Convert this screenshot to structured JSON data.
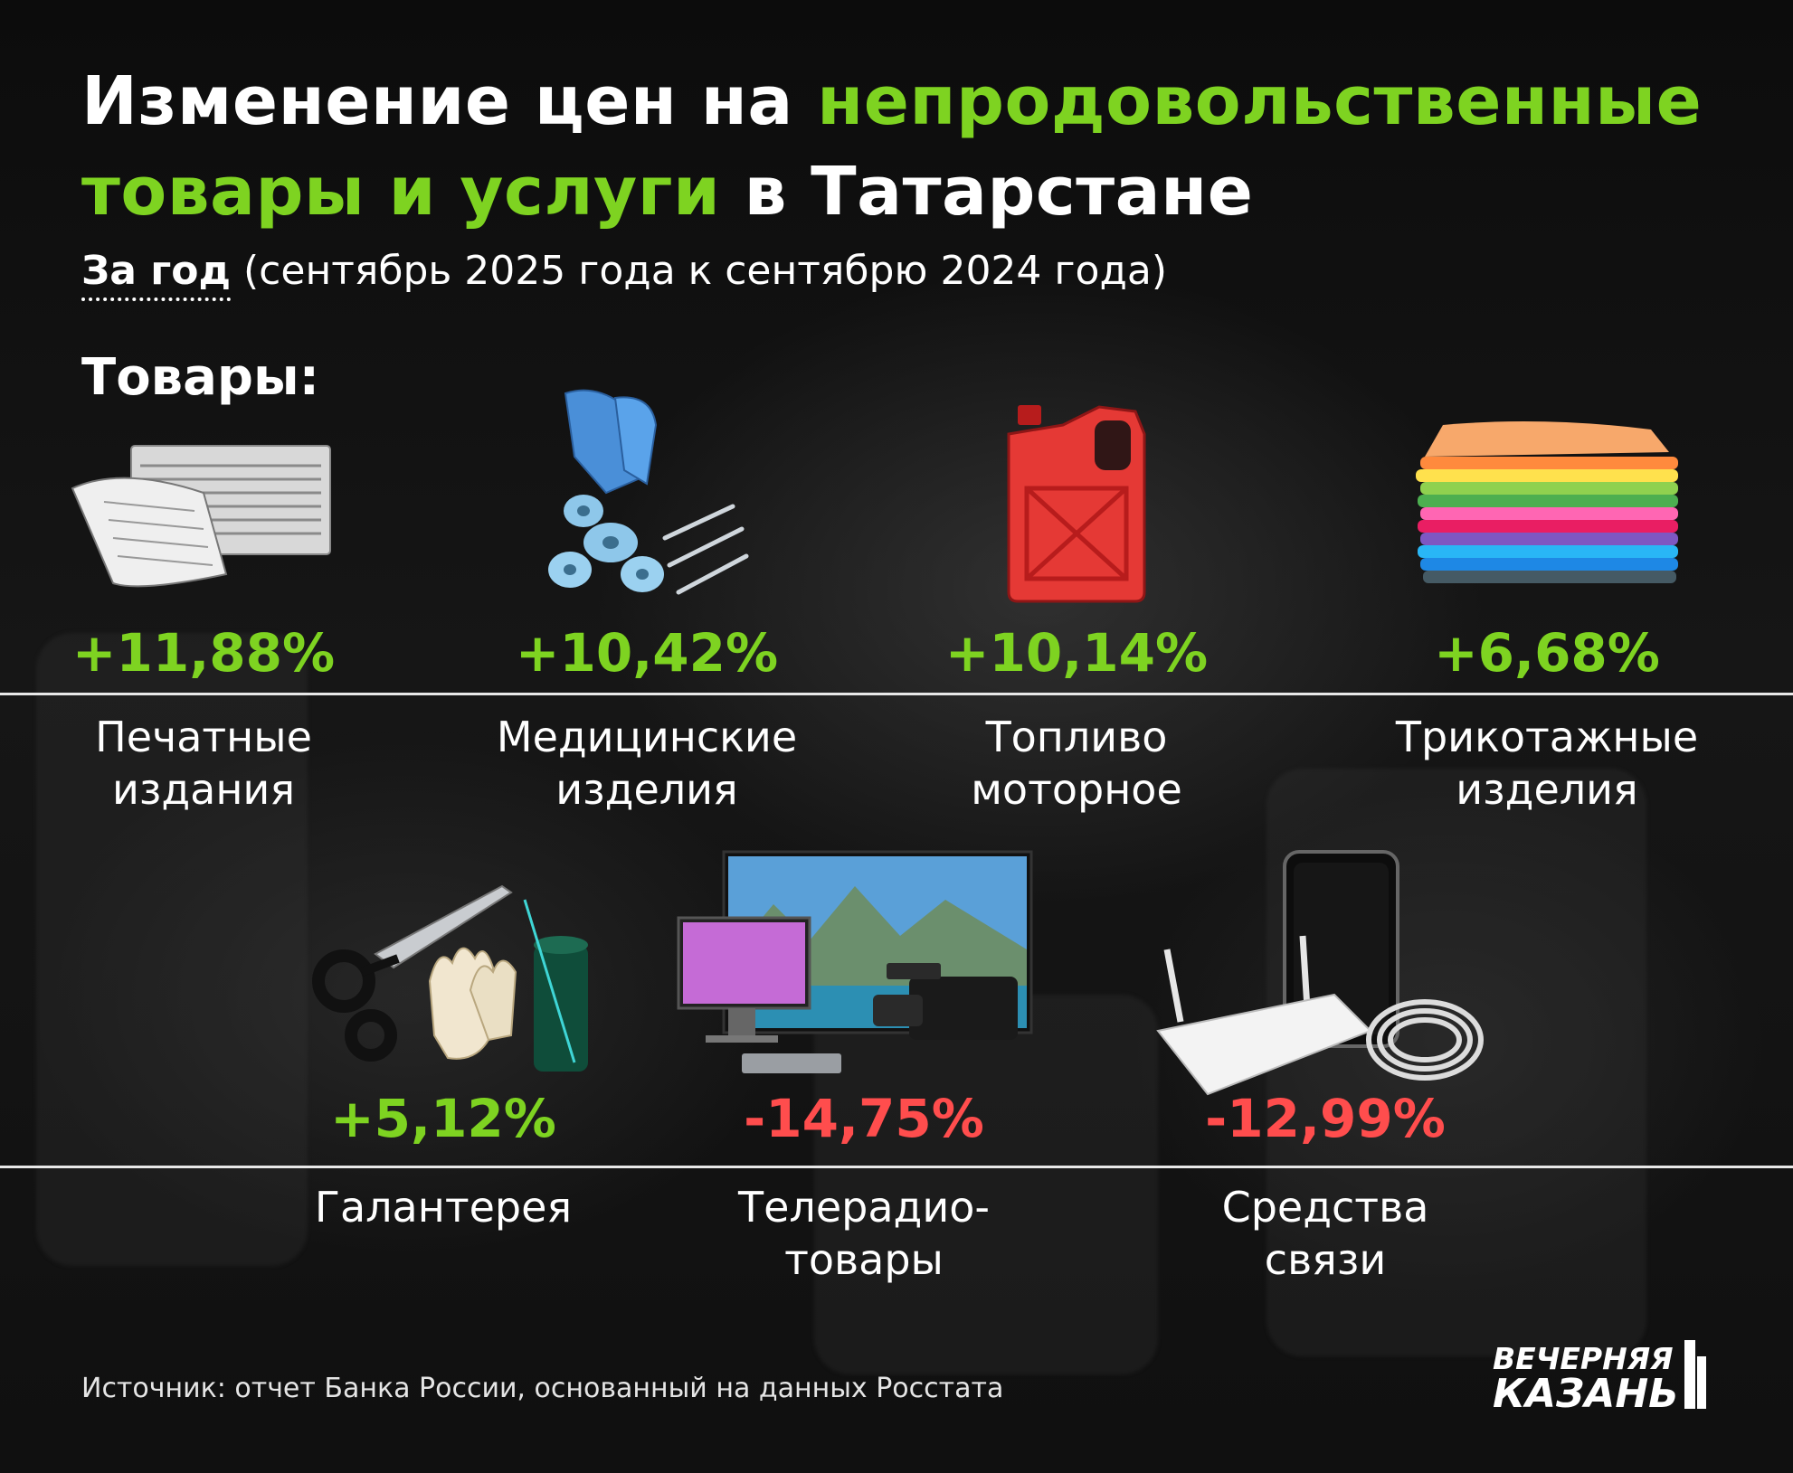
{
  "title": {
    "part1": "Изменение цен на ",
    "part2": "непродовольственные",
    "part3": "товары и услуги",
    "part4": " в Татарстане"
  },
  "subtitle": {
    "bold": "За год",
    "rest": " (сентябрь 2025 года к сентябрю 2024 года)"
  },
  "section_label": "Товары:",
  "items": [
    {
      "value": "+11,88%",
      "line1": "Печатные",
      "line2": "издания",
      "icon": "newspaper-icon",
      "trend": "up"
    },
    {
      "value": "+10,42%",
      "line1": "Медицинские",
      "line2": "изделия",
      "icon": "medical-supplies-icon",
      "trend": "up"
    },
    {
      "value": "+10,14%",
      "line1": "Топливо",
      "line2": "моторное",
      "icon": "fuel-canister-icon",
      "trend": "up"
    },
    {
      "value": "+6,68%",
      "line1": "Трикотажные",
      "line2": "изделия",
      "icon": "folded-clothes-icon",
      "trend": "up"
    },
    {
      "value": "+5,12%",
      "line1": "Галантерея",
      "line2": "",
      "icon": "haberdashery-icon",
      "trend": "up"
    },
    {
      "value": "-14,75%",
      "line1": "Телерадио-",
      "line2": "товары",
      "icon": "tv-electronics-icon",
      "trend": "down"
    },
    {
      "value": "-12,99%",
      "line1": "Средства",
      "line2": "связи",
      "icon": "phone-router-icon",
      "trend": "down"
    }
  ],
  "source": "Источник: отчет Банка России, основанный на данных Росстата",
  "logo": {
    "line1": "ВЕЧЕРНЯЯ",
    "line2": "КАЗАНЬ"
  },
  "colors": {
    "positive": "#7ed321",
    "negative": "#ff4d4d",
    "text": "#ffffff",
    "background": "#111111"
  }
}
